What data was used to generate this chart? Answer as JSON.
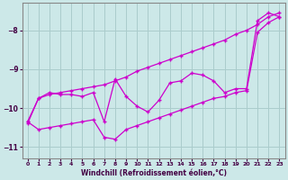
{
  "xlabel": "Windchill (Refroidissement éolien,°C)",
  "bg_color": "#cce8e8",
  "grid_color": "#aacccc",
  "line_color": "#cc00cc",
  "ylim": [
    -11.3,
    -7.3
  ],
  "yticks": [
    -11,
    -10,
    -9,
    -8
  ],
  "xlim": [
    -0.5,
    23.5
  ],
  "xticks": [
    0,
    1,
    2,
    3,
    4,
    5,
    6,
    7,
    8,
    9,
    10,
    11,
    12,
    13,
    14,
    15,
    16,
    17,
    18,
    19,
    20,
    21,
    22,
    23
  ],
  "line_zigzag": [
    -10.4,
    -9.75,
    -9.6,
    -9.65,
    -9.65,
    -9.7,
    -9.6,
    -10.35,
    -9.25,
    -9.7,
    -9.95,
    -10.1,
    -9.8,
    -9.35,
    -9.3,
    -9.1,
    -9.15,
    -9.3,
    -9.6,
    -9.5,
    -9.5,
    -7.75,
    -7.55,
    -7.65
  ],
  "line_upper": [
    -10.35,
    -9.75,
    -9.65,
    -9.6,
    -9.55,
    -9.5,
    -9.45,
    -9.4,
    -9.3,
    -9.2,
    -9.05,
    -8.95,
    -8.85,
    -8.75,
    -8.65,
    -8.55,
    -8.45,
    -8.35,
    -8.25,
    -8.1,
    -8.0,
    -7.85,
    -7.65,
    -7.55
  ],
  "line_lower": [
    -10.35,
    -10.55,
    -10.5,
    -10.45,
    -10.4,
    -10.35,
    -10.3,
    -10.75,
    -10.8,
    -10.55,
    -10.45,
    -10.35,
    -10.25,
    -10.15,
    -10.05,
    -9.95,
    -9.85,
    -9.75,
    -9.7,
    -9.6,
    -9.55,
    -8.05,
    -7.8,
    -7.65
  ]
}
